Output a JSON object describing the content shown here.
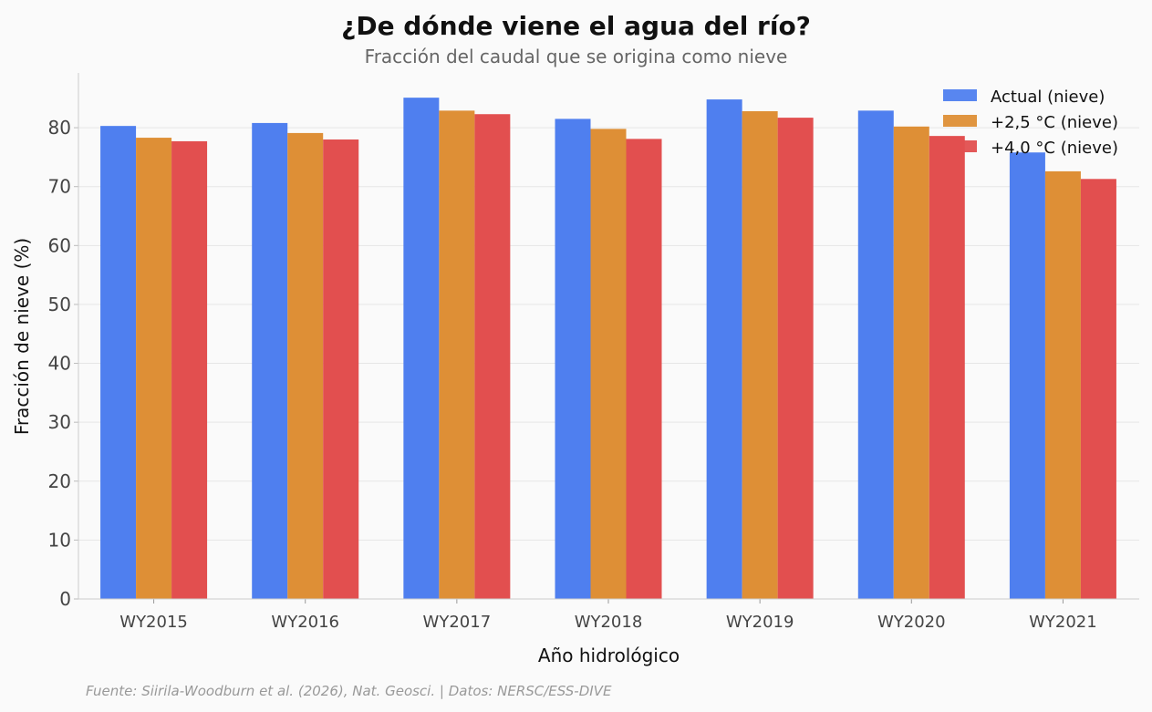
{
  "chart_data": {
    "type": "bar",
    "title": "¿De dónde viene el agua del río?",
    "subtitle": "Fracción del caudal que se origina como nieve",
    "xlabel": "Año hidrológico",
    "ylabel": "Fracción de nieve (%)",
    "ylim": [
      0,
      89.3
    ],
    "yticks": [
      0,
      10,
      20,
      30,
      40,
      50,
      60,
      70,
      80
    ],
    "grid": true,
    "legend_position": "top-right",
    "categories": [
      "WY2015",
      "WY2016",
      "WY2017",
      "WY2018",
      "WY2019",
      "WY2020",
      "WY2021"
    ],
    "series": [
      {
        "name": "Actual (nieve)",
        "color": "#4f7fef",
        "values": [
          80.3,
          80.8,
          85.1,
          81.5,
          84.8,
          82.9,
          75.8
        ]
      },
      {
        "name": "+2,5 °C (nieve)",
        "color": "#de8f36",
        "values": [
          78.3,
          79.1,
          82.9,
          79.8,
          82.8,
          80.2,
          72.6
        ]
      },
      {
        "name": "+4,0 °C (nieve)",
        "color": "#e24f4f",
        "values": [
          77.7,
          78.0,
          82.3,
          78.1,
          81.7,
          78.6,
          71.3
        ]
      }
    ],
    "footer": "Fuente: Siirila-Woodburn et al. (2026), Nat. Geosci. | Datos: NERSC/ESS-DIVE"
  }
}
